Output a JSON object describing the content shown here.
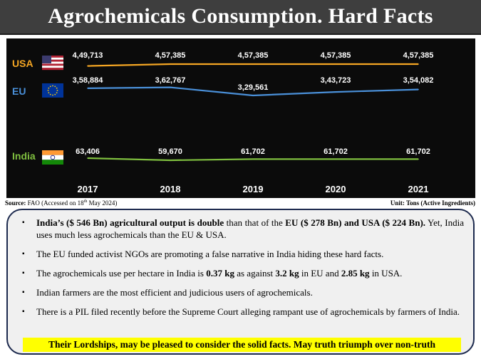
{
  "title": "Agrochemicals Consumption. Hard Facts",
  "source": {
    "label": "Source:",
    "text": "FAO (Accessed on 18",
    "superscript": "th",
    "text_after": " May 2024)"
  },
  "unit": "Unit: Tons (Active Ingredients)",
  "chart_data": {
    "type": "line",
    "x": [
      "2017",
      "2018",
      "2019",
      "2020",
      "2021"
    ],
    "series": [
      {
        "name": "USA",
        "flag": "usa-flag",
        "color": "#f5a623",
        "values": [
          449713,
          457385,
          457385,
          457385,
          457385
        ],
        "labels": [
          "4,49,713",
          "4,57,385",
          "4,57,385",
          "4,57,385",
          "4,57,385"
        ]
      },
      {
        "name": "EU",
        "flag": "eu-flag",
        "color": "#4a90d9",
        "values": [
          358884,
          362767,
          329561,
          343723,
          354082
        ],
        "labels": [
          "3,58,884",
          "3,62,767",
          "3,29,561",
          "3,43,723",
          "3,54,082"
        ]
      },
      {
        "name": "India",
        "flag": "india-flag",
        "color": "#7fbf3f",
        "values": [
          63406,
          59670,
          61702,
          61702,
          61702
        ],
        "labels": [
          "63,406",
          "59,670",
          "61,702",
          "61,702",
          "61,702"
        ]
      }
    ],
    "background": "#0b0b0b",
    "grid": false,
    "legend": "left"
  },
  "facts": [
    {
      "parts": [
        {
          "text": "India’s ($ 546 Bn) agricultural output is double",
          "bold": true
        },
        {
          "text": " than that of the ",
          "bold": false
        },
        {
          "text": "EU ($ 278 Bn) and USA ($ 224 Bn).",
          "bold": true
        },
        {
          "text": " Yet, India uses much less agrochemicals than the EU & USA.",
          "bold": false
        }
      ]
    },
    {
      "parts": [
        {
          "text": "The EU funded activist NGOs are promoting a false narrative in India hiding these hard facts.",
          "bold": false
        }
      ]
    },
    {
      "parts": [
        {
          "text": "The agrochemicals use per hectare in India is ",
          "bold": false
        },
        {
          "text": "0.37 kg",
          "bold": true
        },
        {
          "text": " as against ",
          "bold": false
        },
        {
          "text": "3.2 kg",
          "bold": true
        },
        {
          "text": " in EU and ",
          "bold": false
        },
        {
          "text": "2.85 kg",
          "bold": true
        },
        {
          "text": " in USA.",
          "bold": false
        }
      ]
    },
    {
      "parts": [
        {
          "text": "Indian farmers are the most efficient and judicious users of  agrochemicals.",
          "bold": false
        }
      ]
    },
    {
      "parts": [
        {
          "text": "There is a PIL filed recently before the Supreme Court alleging rampant use of agrochemicals by farmers of India.",
          "bold": false
        }
      ]
    }
  ],
  "bullet_icon": "square-bullet-icon",
  "callout": "Their Lordships, may be pleased to consider the solid facts. May truth triumph over non-truth",
  "callout_color": "#ffff00"
}
